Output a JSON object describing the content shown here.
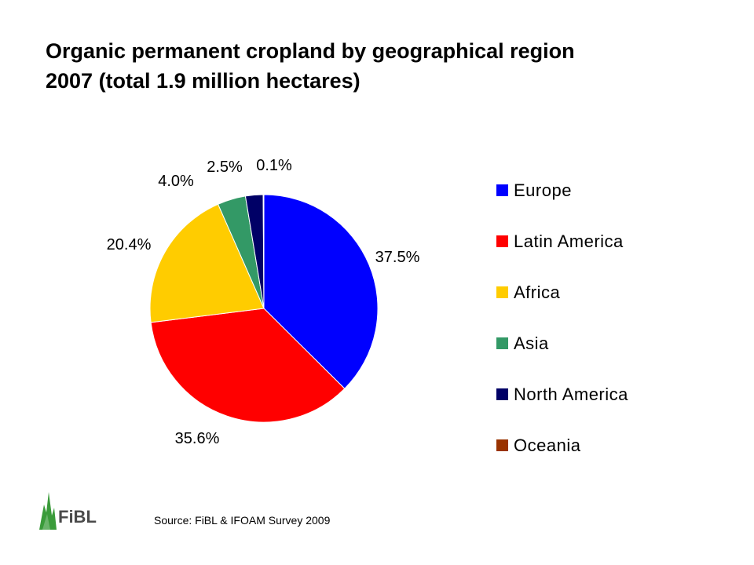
{
  "title_line1": "Organic permanent cropland by geographical region",
  "title_line2": "2007 (total 1.9 million hectares)",
  "source": "Source: FiBL & IFOAM Survey 2009",
  "logo": {
    "text": "FiBL",
    "colors": {
      "green": "#3a9b3a",
      "dark": "#4a4a4a"
    }
  },
  "chart_data": {
    "type": "pie",
    "title": "Organic permanent cropland by geographical region 2007 (total 1.9 million hectares)",
    "series": [
      {
        "name": "Europe",
        "value": 37.5,
        "label": "37.5%",
        "color": "#0000ff"
      },
      {
        "name": "Latin America",
        "value": 35.6,
        "label": "35.6%",
        "color": "#ff0000"
      },
      {
        "name": "Africa",
        "value": 20.4,
        "label": "20.4%",
        "color": "#ffcc00"
      },
      {
        "name": "Asia",
        "value": 4.0,
        "label": "4.0%",
        "color": "#339966"
      },
      {
        "name": "North America",
        "value": 2.5,
        "label": "2.5%",
        "color": "#000066"
      },
      {
        "name": "Oceania",
        "value": 0.1,
        "label": "0.1%",
        "color": "#993300"
      }
    ],
    "legend_position": "right",
    "start_angle": "12 o'clock, clockwise"
  }
}
